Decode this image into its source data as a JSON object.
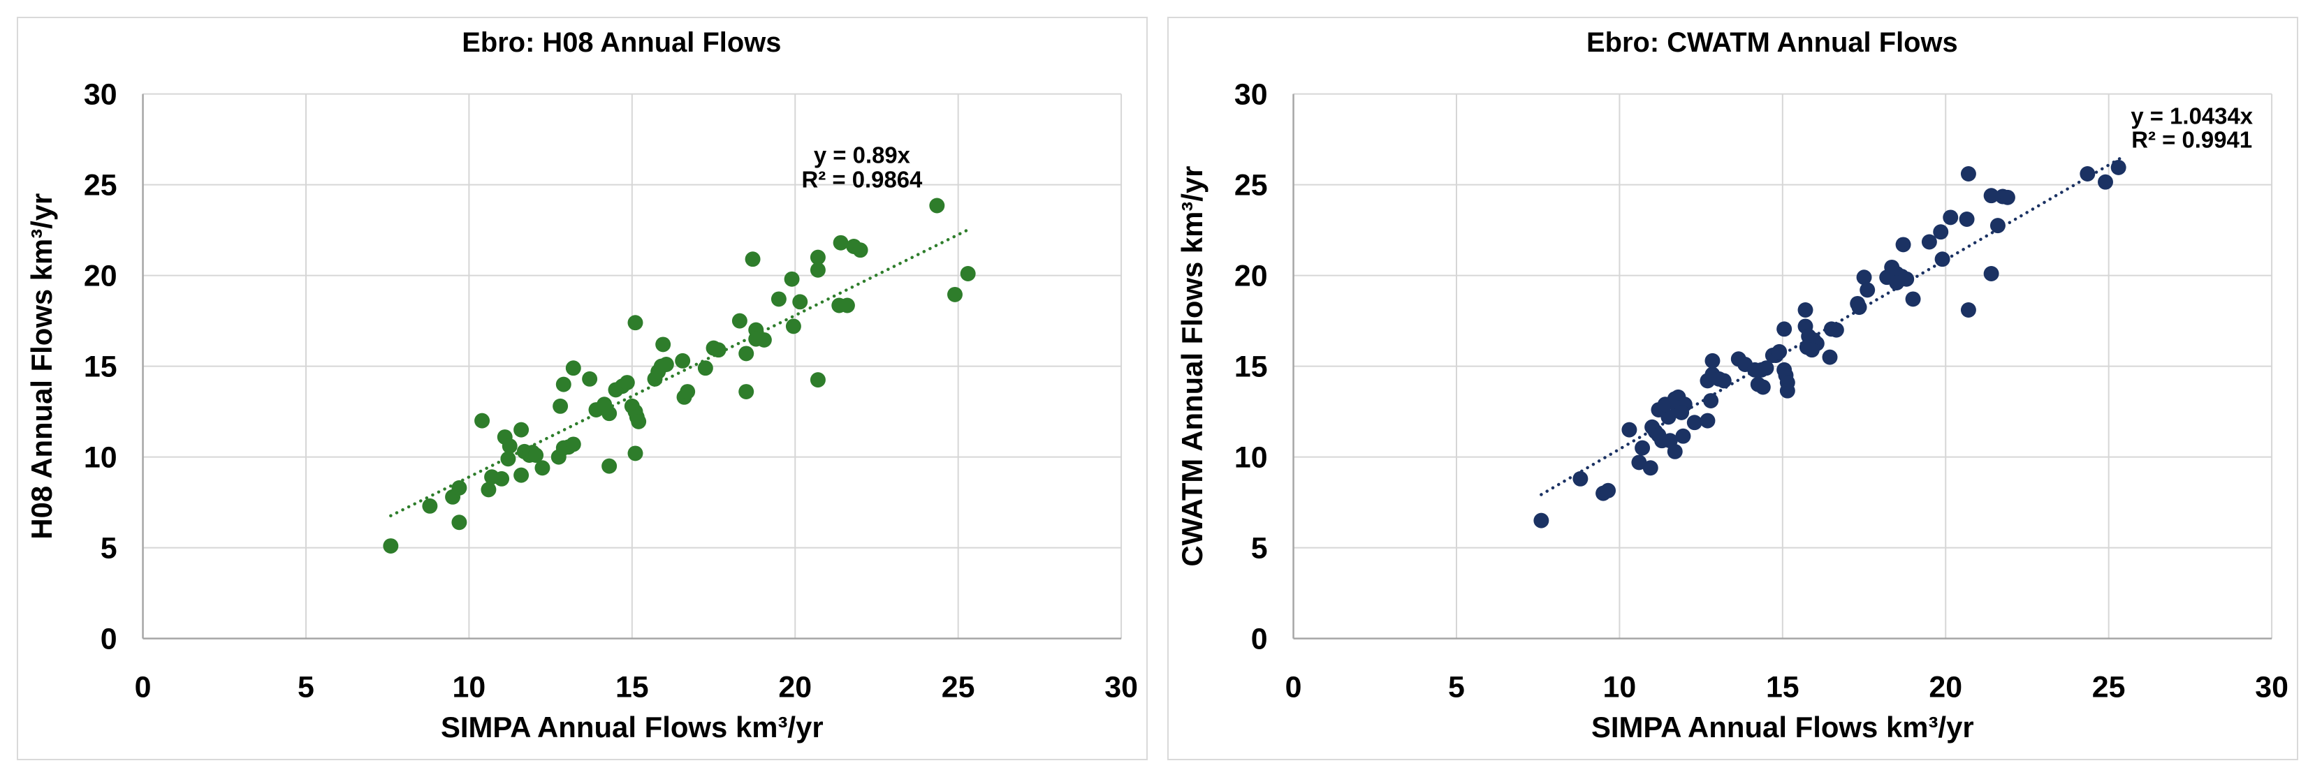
{
  "page": {
    "background": "#ffffff",
    "panel_border": "#D9D9D9"
  },
  "chart_data": [
    {
      "type": "scatter",
      "title": "Ebro: H08 Annual Flows",
      "xlabel": "SIMPA Annual Flows km³/yr",
      "ylabel": "H08 Annual Flows km³/yr",
      "xlim": [
        0,
        30
      ],
      "ylim": [
        0,
        30
      ],
      "xticks": [
        0,
        5,
        10,
        15,
        20,
        25,
        30
      ],
      "yticks": [
        0,
        5,
        10,
        15,
        20,
        25,
        30
      ],
      "grid": true,
      "legend": "none",
      "gridline_color": "#D6D6D6",
      "axis_color": "#A6A6A6",
      "point_color": "#2E7D2B",
      "trendline": {
        "style": "dotted",
        "slope": 0.89,
        "x_start": 7.6,
        "x_end": 25.35,
        "equation": "y = 0.89x",
        "r2": "R² = 0.9864",
        "eq_anchor": [
          22.05,
          26.2
        ],
        "eq_line_gap": 1.35
      },
      "points": [
        [
          7.6,
          5.1
        ],
        [
          8.8,
          7.3
        ],
        [
          9.5,
          7.8
        ],
        [
          9.7,
          8.3
        ],
        [
          9.7,
          6.4
        ],
        [
          10.4,
          12.0
        ],
        [
          10.6,
          8.2
        ],
        [
          10.7,
          8.9
        ],
        [
          11.0,
          8.8
        ],
        [
          11.1,
          11.1
        ],
        [
          11.25,
          10.6
        ],
        [
          11.2,
          9.9
        ],
        [
          11.6,
          11.5
        ],
        [
          11.6,
          9.0
        ],
        [
          11.7,
          10.3
        ],
        [
          11.85,
          10.1
        ],
        [
          11.95,
          10.25
        ],
        [
          12.05,
          10.1
        ],
        [
          12.25,
          9.4
        ],
        [
          12.75,
          10.0
        ],
        [
          12.8,
          12.8
        ],
        [
          12.9,
          14.0
        ],
        [
          12.9,
          10.5
        ],
        [
          13.05,
          10.55
        ],
        [
          13.2,
          10.7
        ],
        [
          13.2,
          14.9
        ],
        [
          13.7,
          14.3
        ],
        [
          13.9,
          12.6
        ],
        [
          14.15,
          12.9
        ],
        [
          14.3,
          12.4
        ],
        [
          14.5,
          13.7
        ],
        [
          14.7,
          13.9
        ],
        [
          14.85,
          14.1
        ],
        [
          15.0,
          12.8
        ],
        [
          15.1,
          12.5
        ],
        [
          15.15,
          12.2
        ],
        [
          15.2,
          11.95
        ],
        [
          15.1,
          10.2
        ],
        [
          14.3,
          9.5
        ],
        [
          15.1,
          17.4
        ],
        [
          15.7,
          14.3
        ],
        [
          15.8,
          14.7
        ],
        [
          15.9,
          15.0
        ],
        [
          16.05,
          15.1
        ],
        [
          15.95,
          16.2
        ],
        [
          16.55,
          15.3
        ],
        [
          16.6,
          13.3
        ],
        [
          16.7,
          13.6
        ],
        [
          17.25,
          14.9
        ],
        [
          17.5,
          16.0
        ],
        [
          17.65,
          15.9
        ],
        [
          18.3,
          17.5
        ],
        [
          18.5,
          13.6
        ],
        [
          18.5,
          15.7
        ],
        [
          18.7,
          20.9
        ],
        [
          18.8,
          17.0
        ],
        [
          18.8,
          16.5
        ],
        [
          19.05,
          16.45
        ],
        [
          19.5,
          18.7
        ],
        [
          19.9,
          19.8
        ],
        [
          19.95,
          17.2
        ],
        [
          20.15,
          18.55
        ],
        [
          20.7,
          21.0
        ],
        [
          20.7,
          20.3
        ],
        [
          20.7,
          14.25
        ],
        [
          21.35,
          18.35
        ],
        [
          21.6,
          18.35
        ],
        [
          21.4,
          21.8
        ],
        [
          21.8,
          21.6
        ],
        [
          22.0,
          21.4
        ],
        [
          24.35,
          23.85
        ],
        [
          24.9,
          18.95
        ],
        [
          25.3,
          20.1
        ]
      ]
    },
    {
      "type": "scatter",
      "title": "Ebro: CWATM Annual Flows",
      "xlabel": "SIMPA Annual Flows km³/yr",
      "ylabel": "CWATM Annual Flows km³/yr",
      "xlim": [
        0,
        30
      ],
      "ylim": [
        0,
        30
      ],
      "xticks": [
        0,
        5,
        10,
        15,
        20,
        25,
        30
      ],
      "yticks": [
        0,
        5,
        10,
        15,
        20,
        25,
        30
      ],
      "grid": true,
      "legend": "none",
      "gridline_color": "#D6D6D6",
      "axis_color": "#A6A6A6",
      "point_color": "#1B3263",
      "trendline": {
        "style": "dotted",
        "slope": 1.0434,
        "x_start": 7.6,
        "x_end": 25.45,
        "equation": "y = 1.0434x",
        "r2": "R² = 0.9941",
        "eq_anchor": [
          27.55,
          28.35
        ],
        "eq_line_gap": 1.3
      },
      "points": [
        [
          7.6,
          6.5
        ],
        [
          8.8,
          8.8
        ],
        [
          9.5,
          8.0
        ],
        [
          9.65,
          8.15
        ],
        [
          10.3,
          11.5
        ],
        [
          10.6,
          9.7
        ],
        [
          10.7,
          10.5
        ],
        [
          10.95,
          9.4
        ],
        [
          11.0,
          11.65
        ],
        [
          11.1,
          11.4
        ],
        [
          11.2,
          11.2
        ],
        [
          11.3,
          10.9
        ],
        [
          11.55,
          10.9
        ],
        [
          11.7,
          10.3
        ],
        [
          11.5,
          12.2
        ],
        [
          11.2,
          12.6
        ],
        [
          11.4,
          12.9
        ],
        [
          11.7,
          13.2
        ],
        [
          11.8,
          13.3
        ],
        [
          12.0,
          12.9
        ],
        [
          11.8,
          12.7
        ],
        [
          11.9,
          12.45
        ],
        [
          11.95,
          11.15
        ],
        [
          12.3,
          11.9
        ],
        [
          12.7,
          12.0
        ],
        [
          12.8,
          13.1
        ],
        [
          12.7,
          14.2
        ],
        [
          12.85,
          14.55
        ],
        [
          13.05,
          14.3
        ],
        [
          13.2,
          14.2
        ],
        [
          12.85,
          15.3
        ],
        [
          13.65,
          15.4
        ],
        [
          13.85,
          15.1
        ],
        [
          14.15,
          14.8
        ],
        [
          14.35,
          14.8
        ],
        [
          14.5,
          14.9
        ],
        [
          14.25,
          14.0
        ],
        [
          14.4,
          13.85
        ],
        [
          14.7,
          15.6
        ],
        [
          14.8,
          15.6
        ],
        [
          14.9,
          15.8
        ],
        [
          15.05,
          14.8
        ],
        [
          15.1,
          14.5
        ],
        [
          15.15,
          14.1
        ],
        [
          15.15,
          13.65
        ],
        [
          15.05,
          17.05
        ],
        [
          15.7,
          17.2
        ],
        [
          15.7,
          18.1
        ],
        [
          15.8,
          16.65
        ],
        [
          15.95,
          16.45
        ],
        [
          16.05,
          16.25
        ],
        [
          15.75,
          16.05
        ],
        [
          15.9,
          15.9
        ],
        [
          16.45,
          15.5
        ],
        [
          16.5,
          17.05
        ],
        [
          16.65,
          17.0
        ],
        [
          17.3,
          18.45
        ],
        [
          17.35,
          18.25
        ],
        [
          17.5,
          19.9
        ],
        [
          17.6,
          19.2
        ],
        [
          18.2,
          19.9
        ],
        [
          18.35,
          20.45
        ],
        [
          18.5,
          20.1
        ],
        [
          18.65,
          19.95
        ],
        [
          18.8,
          19.8
        ],
        [
          18.5,
          19.6
        ],
        [
          19.0,
          18.7
        ],
        [
          18.7,
          21.7
        ],
        [
          19.5,
          21.85
        ],
        [
          19.85,
          22.4
        ],
        [
          19.9,
          20.9
        ],
        [
          20.15,
          23.2
        ],
        [
          20.65,
          23.1
        ],
        [
          21.6,
          22.75
        ],
        [
          21.4,
          24.4
        ],
        [
          21.75,
          24.35
        ],
        [
          21.9,
          24.3
        ],
        [
          21.4,
          20.1
        ],
        [
          20.7,
          18.1
        ],
        [
          20.7,
          25.6
        ],
        [
          24.35,
          25.6
        ],
        [
          24.9,
          25.15
        ],
        [
          25.3,
          25.95
        ]
      ]
    }
  ]
}
